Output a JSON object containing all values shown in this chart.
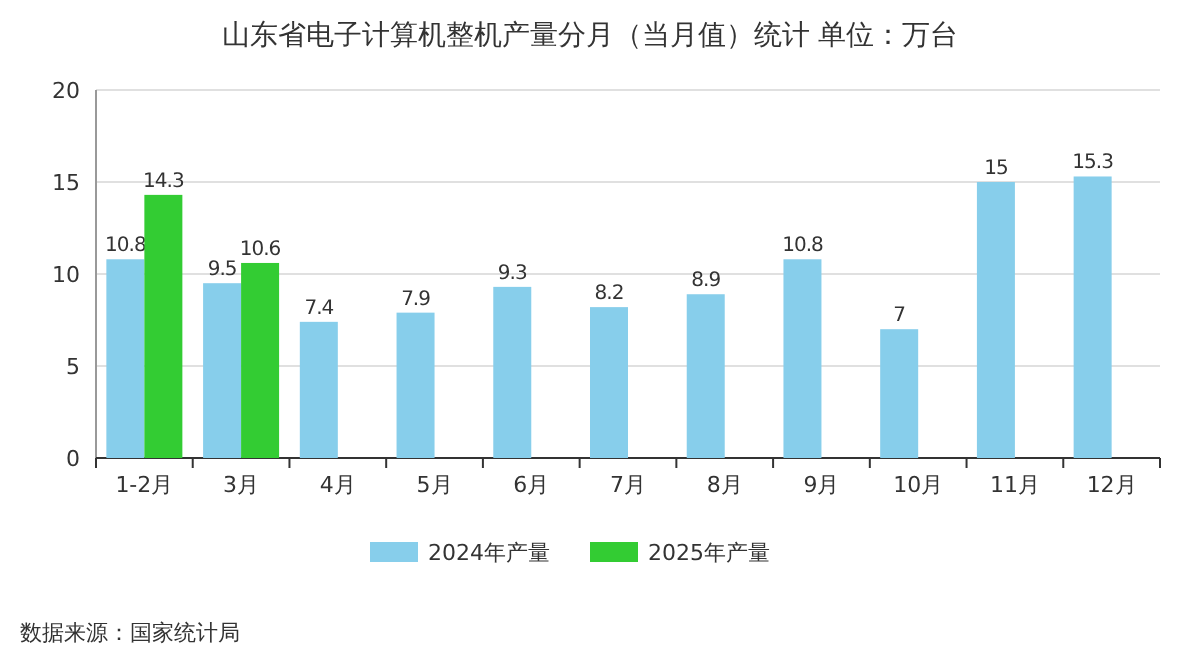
{
  "chart_data": {
    "type": "bar",
    "title": "山东省电子计算机整机产量分月（当月值）统计  单位：万台",
    "categories": [
      "1-2月",
      "3月",
      "4月",
      "5月",
      "6月",
      "7月",
      "8月",
      "9月",
      "10月",
      "11月",
      "12月"
    ],
    "series": [
      {
        "name": "2024年产量",
        "color": "#87ceeb",
        "values": [
          10.8,
          9.5,
          7.4,
          7.9,
          9.3,
          8.2,
          8.9,
          10.8,
          7,
          15,
          15.3
        ]
      },
      {
        "name": "2025年产量",
        "color": "#33cc33",
        "values": [
          14.3,
          10.6,
          null,
          null,
          null,
          null,
          null,
          null,
          null,
          null,
          null
        ]
      }
    ],
    "ylim": [
      0,
      20
    ],
    "yticks": [
      0,
      5,
      10,
      15,
      20
    ],
    "grid": "y",
    "legend": "bottom",
    "data_labels": true,
    "annotations": [
      "数据来源：国家统计局"
    ]
  }
}
